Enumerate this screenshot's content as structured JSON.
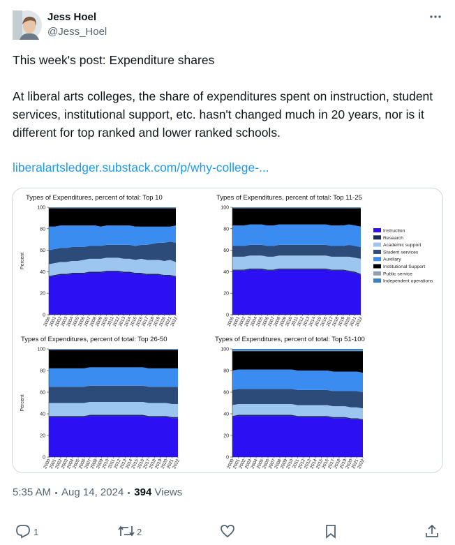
{
  "author": {
    "name": "Jess Hoel",
    "handle": "@Jess_Hoel"
  },
  "text": {
    "paragraphs": [
      "This week's post: Expenditure shares",
      "At liberal arts colleges, the share of expenditures spent on instruction, student services, institutional support, etc. hasn't changed much in 20 years, nor is it different for top ranked and lower ranked schools."
    ],
    "link": "liberalartsledger.substack.com/p/why-college-..."
  },
  "footer": {
    "time": "5:35 AM",
    "date": "Aug 14, 2024",
    "views": "394",
    "views_label": "Views"
  },
  "actions": {
    "replies": 1,
    "reposts": 2
  },
  "chart_data": [
    {
      "type": "stacked-area",
      "title": "Types of Expenditures, percent of total: Top 10",
      "ylabel": "Percent",
      "x": [
        "2000",
        "2001",
        "2002",
        "2003",
        "2004",
        "2005",
        "2006",
        "2007",
        "2008",
        "2009",
        "2010",
        "2011",
        "2012",
        "2013",
        "2014",
        "2015",
        "2016",
        "2017",
        "2018",
        "2019",
        "2020",
        "2021",
        "2022"
      ],
      "ylim": [
        0,
        100
      ],
      "yticks": [
        0,
        20,
        40,
        60,
        80,
        100
      ],
      "series": [
        {
          "color": "#2a10f2",
          "values": [
            35,
            36,
            37,
            37,
            38,
            38,
            38,
            39,
            39,
            39,
            40,
            40,
            40,
            39,
            39,
            38,
            38,
            37,
            37,
            37,
            36,
            36,
            35
          ]
        },
        {
          "color": "#1b2a5c",
          "values": [
            1,
            1,
            1,
            1,
            1,
            1,
            1,
            1,
            1,
            1,
            1,
            1,
            1,
            1,
            1,
            1,
            1,
            1,
            1,
            1,
            1,
            1,
            1
          ]
        },
        {
          "color": "#9cc6ef",
          "values": [
            11,
            11,
            11,
            11,
            11,
            11,
            12,
            12,
            12,
            12,
            12,
            12,
            12,
            12,
            12,
            12,
            13,
            13,
            13,
            13,
            13,
            14,
            13
          ]
        },
        {
          "color": "#2c4b79",
          "values": [
            13,
            13,
            13,
            13,
            13,
            13,
            12,
            12,
            12,
            12,
            12,
            12,
            12,
            13,
            13,
            13,
            13,
            14,
            15,
            16,
            17,
            17,
            18
          ]
        },
        {
          "color": "#3b8cf0",
          "values": [
            22,
            21,
            21,
            21,
            20,
            20,
            20,
            19,
            19,
            18,
            18,
            18,
            18,
            18,
            18,
            18,
            17,
            17,
            16,
            15,
            15,
            14,
            16
          ]
        },
        {
          "color": "#000000",
          "values": [
            17,
            17,
            16,
            16,
            16,
            16,
            16,
            16,
            16,
            17,
            16,
            16,
            16,
            16,
            16,
            17,
            17,
            17,
            17,
            17,
            17,
            17,
            16
          ]
        },
        {
          "color": "#8fa0b2",
          "values": [
            0.5,
            0.5,
            0.5,
            0.5,
            0.5,
            0.5,
            0.5,
            0.5,
            0.5,
            0.5,
            0.5,
            0.5,
            0.5,
            0.5,
            0.5,
            0.5,
            0.5,
            0.5,
            0.5,
            0.5,
            0.5,
            0.5,
            0.5
          ]
        },
        {
          "color": "#3a80c6",
          "values": [
            0.5,
            0.5,
            0.5,
            0.5,
            0.5,
            0.5,
            0.5,
            0.5,
            0.5,
            0.5,
            0.5,
            0.5,
            0.5,
            0.5,
            0.5,
            0.5,
            0.5,
            0.5,
            0.5,
            0.5,
            0.5,
            0.5,
            0.5
          ]
        }
      ]
    },
    {
      "type": "stacked-area",
      "title": "Types of Expenditures, percent of total: Top 11-25",
      "legend": "right",
      "x": [
        "2000",
        "2001",
        "2002",
        "2003",
        "2004",
        "2005",
        "2006",
        "2007",
        "2008",
        "2009",
        "2010",
        "2011",
        "2012",
        "2013",
        "2014",
        "2015",
        "2016",
        "2017",
        "2018",
        "2019",
        "2020",
        "2021",
        "2022"
      ],
      "ylim": [
        0,
        100
      ],
      "yticks": [
        0,
        20,
        40,
        60,
        80,
        100
      ],
      "series": [
        {
          "name": "Instruction",
          "color": "#2a10f2",
          "values": [
            41,
            41,
            41,
            42,
            42,
            42,
            41,
            41,
            42,
            42,
            42,
            42,
            42,
            42,
            42,
            42,
            42,
            41,
            41,
            41,
            40,
            39,
            37
          ]
        },
        {
          "name": "Research",
          "color": "#1b2a5c",
          "values": [
            1,
            1,
            1,
            1,
            1,
            1,
            1,
            1,
            1,
            1,
            1,
            1,
            1,
            1,
            1,
            1,
            1,
            1,
            1,
            1,
            1,
            1,
            1
          ]
        },
        {
          "name": "Academic support",
          "color": "#9cc6ef",
          "values": [
            12,
            12,
            12,
            12,
            12,
            12,
            12,
            12,
            12,
            12,
            12,
            12,
            12,
            12,
            12,
            12,
            12,
            12,
            12,
            12,
            13,
            13,
            14
          ]
        },
        {
          "name": "Student services",
          "color": "#2c4b79",
          "values": [
            10,
            10,
            10,
            10,
            10,
            10,
            10,
            10,
            10,
            10,
            10,
            10,
            10,
            10,
            10,
            10,
            10,
            10,
            10,
            10,
            11,
            11,
            11
          ]
        },
        {
          "name": "Auxiliary",
          "color": "#3b8cf0",
          "values": [
            19,
            19,
            19,
            19,
            19,
            19,
            19,
            19,
            19,
            19,
            19,
            19,
            19,
            19,
            19,
            19,
            19,
            19,
            19,
            19,
            19,
            19,
            19
          ]
        },
        {
          "name": "Institutional Support",
          "color": "#000000",
          "values": [
            16,
            16,
            16,
            15,
            15,
            15,
            16,
            16,
            15,
            15,
            15,
            15,
            15,
            15,
            15,
            15,
            15,
            16,
            16,
            16,
            15,
            16,
            17
          ]
        },
        {
          "name": "Public service",
          "color": "#8fa0b2",
          "values": [
            0.5,
            0.5,
            0.5,
            0.5,
            0.5,
            0.5,
            0.5,
            0.5,
            0.5,
            0.5,
            0.5,
            0.5,
            0.5,
            0.5,
            0.5,
            0.5,
            0.5,
            0.5,
            0.5,
            0.5,
            0.5,
            0.5,
            0.5
          ]
        },
        {
          "name": "Independent operations",
          "color": "#3a80c6",
          "values": [
            0.5,
            0.5,
            0.5,
            0.5,
            0.5,
            0.5,
            0.5,
            0.5,
            0.5,
            0.5,
            0.5,
            0.5,
            0.5,
            0.5,
            0.5,
            0.5,
            0.5,
            0.5,
            0.5,
            0.5,
            0.5,
            0.5,
            0.5
          ]
        }
      ]
    },
    {
      "type": "stacked-area",
      "title": "Types of Expenditures, percent of total: Top 26-50",
      "ylabel": "Percent",
      "x": [
        "2000",
        "2001",
        "2002",
        "2003",
        "2004",
        "2005",
        "2006",
        "2007",
        "2008",
        "2009",
        "2010",
        "2011",
        "2012",
        "2013",
        "2014",
        "2015",
        "2016",
        "2017",
        "2018",
        "2019",
        "2020",
        "2021",
        "2022"
      ],
      "ylim": [
        0,
        100
      ],
      "yticks": [
        0,
        20,
        40,
        60,
        80,
        100
      ],
      "series": [
        {
          "color": "#2a10f2",
          "values": [
            37,
            37,
            37,
            37,
            37,
            37,
            37,
            38,
            38,
            38,
            38,
            38,
            38,
            38,
            38,
            38,
            38,
            37,
            37,
            37,
            37,
            36,
            36
          ]
        },
        {
          "color": "#1b2a5c",
          "values": [
            1,
            1,
            1,
            1,
            1,
            1,
            1,
            1,
            1,
            1,
            1,
            1,
            1,
            1,
            1,
            1,
            1,
            1,
            1,
            1,
            1,
            1,
            1
          ]
        },
        {
          "color": "#9cc6ef",
          "values": [
            12,
            12,
            12,
            12,
            12,
            12,
            12,
            12,
            12,
            12,
            12,
            12,
            12,
            12,
            12,
            12,
            12,
            12,
            12,
            12,
            12,
            12,
            12
          ]
        },
        {
          "color": "#2c4b79",
          "values": [
            15,
            15,
            15,
            15,
            15,
            15,
            15,
            15,
            15,
            15,
            15,
            15,
            15,
            15,
            15,
            15,
            15,
            15,
            15,
            15,
            15,
            16,
            16
          ]
        },
        {
          "color": "#3b8cf0",
          "values": [
            17,
            17,
            17,
            17,
            17,
            17,
            17,
            17,
            17,
            17,
            17,
            17,
            17,
            17,
            17,
            17,
            17,
            17,
            17,
            17,
            17,
            17,
            17
          ]
        },
        {
          "color": "#000000",
          "values": [
            17,
            17,
            17,
            17,
            17,
            17,
            17,
            16,
            16,
            16,
            16,
            16,
            16,
            16,
            16,
            16,
            16,
            17,
            17,
            17,
            17,
            17,
            17
          ]
        },
        {
          "color": "#8fa0b2",
          "values": [
            0.5,
            0.5,
            0.5,
            0.5,
            0.5,
            0.5,
            0.5,
            0.5,
            0.5,
            0.5,
            0.5,
            0.5,
            0.5,
            0.5,
            0.5,
            0.5,
            0.5,
            0.5,
            0.5,
            0.5,
            0.5,
            0.5,
            0.5
          ]
        },
        {
          "color": "#3a80c6",
          "values": [
            0.5,
            0.5,
            0.5,
            0.5,
            0.5,
            0.5,
            0.5,
            0.5,
            0.5,
            0.5,
            0.5,
            0.5,
            0.5,
            0.5,
            0.5,
            0.5,
            0.5,
            0.5,
            0.5,
            0.5,
            0.5,
            0.5,
            0.5
          ]
        }
      ]
    },
    {
      "type": "stacked-area",
      "title": "Types of Expenditures, percent of total: Top 51-100",
      "x": [
        "2000",
        "2001",
        "2002",
        "2003",
        "2004",
        "2005",
        "2006",
        "2007",
        "2008",
        "2009",
        "2010",
        "2011",
        "2012",
        "2013",
        "2014",
        "2015",
        "2016",
        "2017",
        "2018",
        "2019",
        "2020",
        "2021",
        "2022"
      ],
      "ylim": [
        0,
        100
      ],
      "yticks": [
        0,
        20,
        40,
        60,
        80,
        100
      ],
      "series": [
        {
          "color": "#2a10f2",
          "values": [
            37,
            38,
            38,
            38,
            38,
            38,
            38,
            38,
            38,
            38,
            38,
            37,
            37,
            37,
            37,
            37,
            37,
            36,
            36,
            36,
            35,
            35,
            34
          ]
        },
        {
          "color": "#1b2a5c",
          "values": [
            1,
            1,
            1,
            1,
            1,
            1,
            1,
            1,
            1,
            1,
            1,
            1,
            1,
            1,
            1,
            1,
            1,
            1,
            1,
            1,
            1,
            1,
            1
          ]
        },
        {
          "color": "#9cc6ef",
          "values": [
            10,
            10,
            10,
            10,
            10,
            10,
            10,
            10,
            10,
            10,
            10,
            10,
            10,
            10,
            10,
            10,
            10,
            10,
            10,
            10,
            10,
            10,
            10
          ]
        },
        {
          "color": "#2c4b79",
          "values": [
            14,
            14,
            14,
            14,
            14,
            14,
            14,
            14,
            14,
            14,
            14,
            14,
            14,
            14,
            14,
            14,
            14,
            14,
            14,
            14,
            15,
            15,
            15
          ]
        },
        {
          "color": "#3b8cf0",
          "values": [
            18,
            18,
            18,
            18,
            18,
            18,
            18,
            18,
            18,
            18,
            18,
            18,
            18,
            18,
            18,
            18,
            18,
            18,
            18,
            18,
            18,
            18,
            18
          ]
        },
        {
          "color": "#000000",
          "values": [
            18,
            17,
            17,
            17,
            17,
            17,
            17,
            17,
            17,
            17,
            17,
            18,
            18,
            18,
            18,
            18,
            18,
            19,
            19,
            19,
            19,
            19,
            20
          ]
        },
        {
          "color": "#8fa0b2",
          "values": [
            0.5,
            0.5,
            0.5,
            0.5,
            0.5,
            0.5,
            0.5,
            0.5,
            0.5,
            0.5,
            0.5,
            0.5,
            0.5,
            0.5,
            0.5,
            0.5,
            0.5,
            0.5,
            0.5,
            0.5,
            0.5,
            0.5,
            0.5
          ]
        },
        {
          "color": "#3a80c6",
          "values": [
            1.5,
            1.5,
            1.5,
            1.5,
            1.5,
            1.5,
            1.5,
            1.5,
            1.5,
            1.5,
            1.5,
            1.5,
            1.5,
            1.5,
            1.5,
            1.5,
            1.5,
            1.5,
            1.5,
            1.5,
            1.5,
            1.5,
            1.5
          ]
        }
      ]
    }
  ]
}
